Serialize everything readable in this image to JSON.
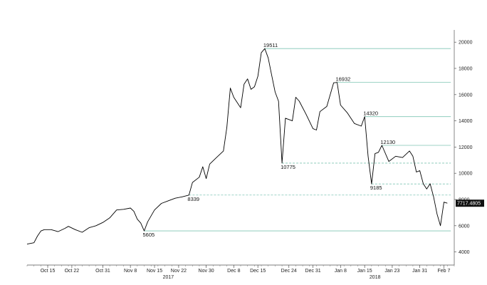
{
  "chart_data": {
    "type": "line",
    "title": "",
    "xlabel": "",
    "ylabel": "",
    "x_range": [
      "2017-10-09",
      "2018-02-10"
    ],
    "ylim": [
      3000,
      20500
    ],
    "y_ticks": [
      {
        "value": 4000,
        "label": "4000"
      },
      {
        "value": 6000,
        "label": "6000"
      },
      {
        "value": 8000,
        "label": "8000"
      },
      {
        "value": 10000,
        "label": "10000"
      },
      {
        "value": 12000,
        "label": "12000"
      },
      {
        "value": 14000,
        "label": "14000"
      },
      {
        "value": 16000,
        "label": "16000"
      },
      {
        "value": 18000,
        "label": "18000"
      },
      {
        "value": 20000,
        "label": "20000"
      }
    ],
    "x_ticks": [
      {
        "date": "2017-10-15",
        "label": "Oct 15"
      },
      {
        "date": "2017-10-22",
        "label": "Oct 22"
      },
      {
        "date": "2017-10-31",
        "label": "Oct 31"
      },
      {
        "date": "2017-11-08",
        "label": "Nov 8"
      },
      {
        "date": "2017-11-15",
        "label": "Nov 15"
      },
      {
        "date": "2017-11-22",
        "label": "Nov 22"
      },
      {
        "date": "2017-11-30",
        "label": "Nov 30"
      },
      {
        "date": "2017-12-08",
        "label": "Dec 8"
      },
      {
        "date": "2017-12-15",
        "label": "Dec 15"
      },
      {
        "date": "2017-12-24",
        "label": "Dec 24"
      },
      {
        "date": "2017-12-31",
        "label": "Dec 31"
      },
      {
        "date": "2018-01-08",
        "label": "Jan 8"
      },
      {
        "date": "2018-01-15",
        "label": "Jan 15"
      },
      {
        "date": "2018-01-23",
        "label": "Jan 23"
      },
      {
        "date": "2018-01-31",
        "label": "Jan 31"
      },
      {
        "date": "2018-02-07",
        "label": "Feb 7"
      }
    ],
    "year_labels": [
      {
        "date": "2017-11-19",
        "label": "2017"
      },
      {
        "date": "2018-01-18",
        "label": "2018"
      }
    ],
    "series": [
      {
        "color": "#000000",
        "points": [
          [
            "2017-10-09",
            4600
          ],
          [
            "2017-10-11",
            4700
          ],
          [
            "2017-10-12",
            5200
          ],
          [
            "2017-10-13",
            5600
          ],
          [
            "2017-10-14",
            5700
          ],
          [
            "2017-10-16",
            5700
          ],
          [
            "2017-10-18",
            5550
          ],
          [
            "2017-10-20",
            5800
          ],
          [
            "2017-10-21",
            5950
          ],
          [
            "2017-10-23",
            5700
          ],
          [
            "2017-10-25",
            5500
          ],
          [
            "2017-10-27",
            5850
          ],
          [
            "2017-10-29",
            6000
          ],
          [
            "2017-10-31",
            6250
          ],
          [
            "2017-11-02",
            6600
          ],
          [
            "2017-11-04",
            7200
          ],
          [
            "2017-11-06",
            7250
          ],
          [
            "2017-11-08",
            7350
          ],
          [
            "2017-11-09",
            7100
          ],
          [
            "2017-11-10",
            6500
          ],
          [
            "2017-11-11",
            6200
          ],
          [
            "2017-11-12",
            5605
          ],
          [
            "2017-11-13",
            6300
          ],
          [
            "2017-11-15",
            7200
          ],
          [
            "2017-11-17",
            7700
          ],
          [
            "2017-11-19",
            7900
          ],
          [
            "2017-11-21",
            8100
          ],
          [
            "2017-11-23",
            8200
          ],
          [
            "2017-11-25",
            8339
          ],
          [
            "2017-11-26",
            9300
          ],
          [
            "2017-11-28",
            9700
          ],
          [
            "2017-11-29",
            10500
          ],
          [
            "2017-11-30",
            9600
          ],
          [
            "2017-12-01",
            10700
          ],
          [
            "2017-12-03",
            11200
          ],
          [
            "2017-12-05",
            11700
          ],
          [
            "2017-12-06",
            13500
          ],
          [
            "2017-12-07",
            16500
          ],
          [
            "2017-12-08",
            15800
          ],
          [
            "2017-12-10",
            15000
          ],
          [
            "2017-12-11",
            16800
          ],
          [
            "2017-12-12",
            17200
          ],
          [
            "2017-12-13",
            16400
          ],
          [
            "2017-12-14",
            16600
          ],
          [
            "2017-12-15",
            17400
          ],
          [
            "2017-12-16",
            19200
          ],
          [
            "2017-12-17",
            19511
          ],
          [
            "2017-12-18",
            18800
          ],
          [
            "2017-12-19",
            17500
          ],
          [
            "2017-12-20",
            16200
          ],
          [
            "2017-12-21",
            15500
          ],
          [
            "2017-12-22",
            10775
          ],
          [
            "2017-12-23",
            14200
          ],
          [
            "2017-12-25",
            14000
          ],
          [
            "2017-12-26",
            15800
          ],
          [
            "2017-12-27",
            15500
          ],
          [
            "2017-12-29",
            14500
          ],
          [
            "2017-12-31",
            13400
          ],
          [
            "2018-01-01",
            13300
          ],
          [
            "2018-01-02",
            14700
          ],
          [
            "2018-01-04",
            15100
          ],
          [
            "2018-01-06",
            16900
          ],
          [
            "2018-01-07",
            16932
          ],
          [
            "2018-01-08",
            15200
          ],
          [
            "2018-01-10",
            14600
          ],
          [
            "2018-01-12",
            13800
          ],
          [
            "2018-01-14",
            13600
          ],
          [
            "2018-01-15",
            14320
          ],
          [
            "2018-01-16",
            11300
          ],
          [
            "2018-01-17",
            9185
          ],
          [
            "2018-01-18",
            11500
          ],
          [
            "2018-01-19",
            11600
          ],
          [
            "2018-01-20",
            12130
          ],
          [
            "2018-01-22",
            10900
          ],
          [
            "2018-01-24",
            11300
          ],
          [
            "2018-01-26",
            11200
          ],
          [
            "2018-01-28",
            11700
          ],
          [
            "2018-01-29",
            11300
          ],
          [
            "2018-01-30",
            10100
          ],
          [
            "2018-01-31",
            10200
          ],
          [
            "2018-02-01",
            9200
          ],
          [
            "2018-02-02",
            8800
          ],
          [
            "2018-02-03",
            9200
          ],
          [
            "2018-02-04",
            8200
          ],
          [
            "2018-02-05",
            6900
          ],
          [
            "2018-02-06",
            6000
          ],
          [
            "2018-02-07",
            7800
          ],
          [
            "2018-02-08",
            7717.4805
          ]
        ]
      }
    ],
    "annotations": [
      {
        "label": "19511",
        "date": "2017-12-17",
        "value": 19511,
        "line_end": "2018-02-09",
        "dashed": false
      },
      {
        "label": "16932",
        "date": "2018-01-07",
        "value": 16932,
        "line_end": "2018-02-09",
        "dashed": false
      },
      {
        "label": "14320",
        "date": "2018-01-15",
        "value": 14320,
        "line_end": "2018-02-09",
        "dashed": false
      },
      {
        "label": "12130",
        "date": "2018-01-20",
        "value": 12130,
        "line_end": "2018-02-09",
        "dashed": false
      },
      {
        "label": "10775",
        "date": "2017-12-22",
        "value": 10775,
        "line_end": "2018-02-09",
        "dashed": true
      },
      {
        "label": "9185",
        "date": "2018-01-17",
        "value": 9185,
        "line_end": "2018-02-09",
        "dashed": true
      },
      {
        "label": "8339",
        "date": "2017-11-25",
        "value": 8339,
        "line_end": "2018-02-09",
        "dashed": true
      },
      {
        "label": "5605",
        "date": "2017-11-12",
        "value": 5605,
        "line_end": "2018-02-09",
        "dashed": false
      }
    ],
    "last_value": {
      "value": 7717.4805,
      "label": "7717.4805"
    },
    "grid": false,
    "colors": {
      "line": "#000000",
      "level": "#7fc5b3",
      "last_badge": "#111111"
    }
  }
}
